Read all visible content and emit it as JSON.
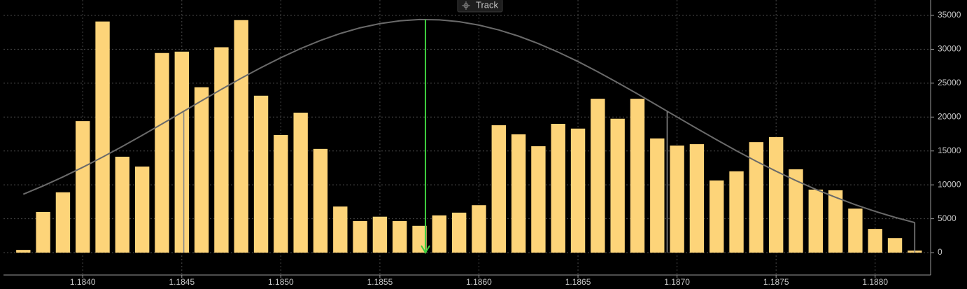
{
  "toolbar": {
    "track": "Track"
  },
  "chart_data": {
    "type": "bar",
    "x": [
      1.1837,
      1.1838,
      1.1839,
      1.184,
      1.1841,
      1.1842,
      1.1843,
      1.1844,
      1.1845,
      1.1846,
      1.1847,
      1.1848,
      1.1849,
      1.185,
      1.1851,
      1.1852,
      1.1853,
      1.1854,
      1.1855,
      1.1856,
      1.1857,
      1.1858,
      1.1859,
      1.186,
      1.1861,
      1.1862,
      1.1863,
      1.1864,
      1.1865,
      1.1866,
      1.1867,
      1.1868,
      1.1869,
      1.187,
      1.1871,
      1.1872,
      1.1873,
      1.1874,
      1.1875,
      1.1876,
      1.1877,
      1.1878,
      1.1879,
      1.188,
      1.1881,
      1.1882
    ],
    "series": [
      {
        "kind": "bar",
        "color": "#fdd479",
        "values": [
          400,
          6000,
          8900,
          19400,
          34100,
          14150,
          12700,
          29450,
          29650,
          24400,
          30300,
          34300,
          23150,
          17350,
          20650,
          15300,
          6800,
          4650,
          5300,
          4650,
          3950,
          5500,
          5900,
          7000,
          18800,
          17450,
          15700,
          19000,
          18300,
          22700,
          19750,
          22700,
          16850,
          15800,
          16000,
          10650,
          12000,
          16300,
          17050,
          12300,
          9300,
          9200,
          6500,
          3500,
          2150,
          300
        ]
      },
      {
        "kind": "line",
        "color": "#6a6a6a",
        "values": [
          8617,
          9845,
          11170,
          12590,
          14090,
          15670,
          17310,
          18990,
          20690,
          22400,
          24090,
          25730,
          27290,
          28760,
          30110,
          31300,
          32330,
          33170,
          33790,
          34200,
          34390,
          34340,
          34070,
          33570,
          32850,
          31940,
          30840,
          29580,
          28190,
          26680,
          25080,
          23420,
          21720,
          20010,
          18310,
          16650,
          15030,
          13480,
          12010,
          10630,
          9340,
          8160,
          7070,
          6090,
          5210,
          4430
        ]
      }
    ],
    "markers": [
      {
        "x": 1.18573,
        "value": 34390,
        "color": "#3fcf3f",
        "arrow": true
      },
      {
        "x": 1.18451,
        "value": 20700,
        "color": "#8a8a8a"
      },
      {
        "x": 1.18695,
        "value": 20800,
        "color": "#8a8a8a"
      },
      {
        "x": 1.1882,
        "value": 4430,
        "color": "#8a8a8a"
      }
    ],
    "xlim": [
      1.1836,
      1.18828
    ],
    "ylim": [
      -3300,
      37270
    ],
    "xticks": [
      {
        "value": 1.184,
        "label": "1.1840"
      },
      1.1845,
      {
        "value": 1.185,
        "label": "1.1850"
      },
      1.1855,
      {
        "value": 1.186,
        "label": "1.1860"
      },
      1.1865,
      {
        "value": 1.187,
        "label": "1.1870"
      },
      1.1875,
      {
        "value": 1.188,
        "label": "1.1880"
      }
    ],
    "yticks": [
      0,
      5000,
      10000,
      15000,
      20000,
      25000,
      30000,
      35000
    ],
    "grid": true
  }
}
